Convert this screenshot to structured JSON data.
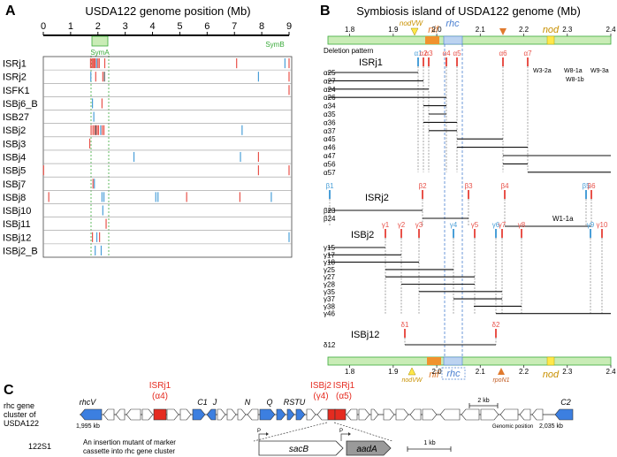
{
  "panelA": {
    "letter": "A",
    "title": "USDA122 genome position (Mb)",
    "ticks": [
      "0",
      "1",
      "2",
      "3",
      "4",
      "5",
      "6",
      "7",
      "8",
      "9"
    ],
    "symA": "SymA",
    "symB": "SymB",
    "rows": [
      "ISRj1",
      "ISRj2",
      "ISFK1",
      "ISBj6_B",
      "ISB27",
      "ISBj2",
      "ISBj3",
      "ISBj4",
      "ISBj5",
      "ISBj7",
      "ISBj8",
      "ISBj10",
      "ISBj11",
      "ISBj12",
      "ISBj2_B"
    ],
    "colors": {
      "red": "#e8524a",
      "blue": "#4a9fd8",
      "green": "#3aaa3a",
      "symbox": "#c9ecb6"
    }
  },
  "panelB": {
    "letter": "B",
    "title": "Symbiosis island of USDA122 genome (Mb)",
    "ticks": [
      "1.8",
      "1.9",
      "2.0",
      "2.1",
      "2.2",
      "2.3",
      "2.4"
    ],
    "genes": {
      "nodVW": "nodVW",
      "nif": "nif",
      "rhc": "rhc",
      "nod": "nod",
      "rpoN1": "rpoN1"
    },
    "deletion_pattern": "Deletion pattern",
    "isrj1": {
      "label": "ISRj1",
      "markers": [
        "α1",
        "α2",
        "α3",
        "α4",
        "α5",
        "α6",
        "α7"
      ],
      "rows": [
        "α25",
        "α27",
        "α24",
        "α26",
        "α34",
        "α35",
        "α36",
        "α37",
        "α45",
        "α46",
        "α47",
        "α56",
        "α57"
      ],
      "notes": [
        "W3-2a",
        "W8-1a",
        "W9-3a",
        "W8-1b"
      ]
    },
    "isrj2": {
      "label": "ISRj2",
      "markers": [
        "β1",
        "β2",
        "β3",
        "β4",
        "β5",
        "β6"
      ],
      "rows": [
        "β23",
        "β24"
      ],
      "note": "W1-1a"
    },
    "isbj2": {
      "label": "ISBj2",
      "markers": [
        "γ1",
        "γ2",
        "γ3",
        "γ4",
        "γ5",
        "γ6",
        "γ7",
        "γ8",
        "γ9",
        "γ10"
      ],
      "rows": [
        "γ15",
        "γ17",
        "γ18",
        "γ25",
        "γ27",
        "γ28",
        "γ35",
        "γ37",
        "γ38",
        "γ46"
      ]
    },
    "isbj12": {
      "label": "ISBj12",
      "markers": [
        "δ1",
        "δ2"
      ],
      "rows": [
        "δ12"
      ]
    }
  },
  "panelC": {
    "letter": "C",
    "gene_cluster_label": [
      "rhc gene",
      "cluster of",
      "USDA122"
    ],
    "pos_left": "1,995 kb",
    "pos_right": "2,035 kb",
    "genes": [
      "rhcV",
      "C1",
      "J",
      "N",
      "Q",
      "RSTU",
      "C2"
    ],
    "is_labels": [
      [
        "ISRj1",
        "(α4)"
      ],
      [
        "ISBj2",
        "(γ4)"
      ],
      [
        "ISRj1",
        "(α5)"
      ]
    ],
    "scale_top": "2 kb",
    "genomic_position": "Genomic position",
    "mutant_name": "122S1",
    "mutant_desc": [
      "An insertion mutant of marker",
      "cassette into rhc gene cluster"
    ],
    "cassette": [
      "sacB",
      "aadA"
    ],
    "promoter": "P",
    "scale_bottom": "1 kb"
  }
}
